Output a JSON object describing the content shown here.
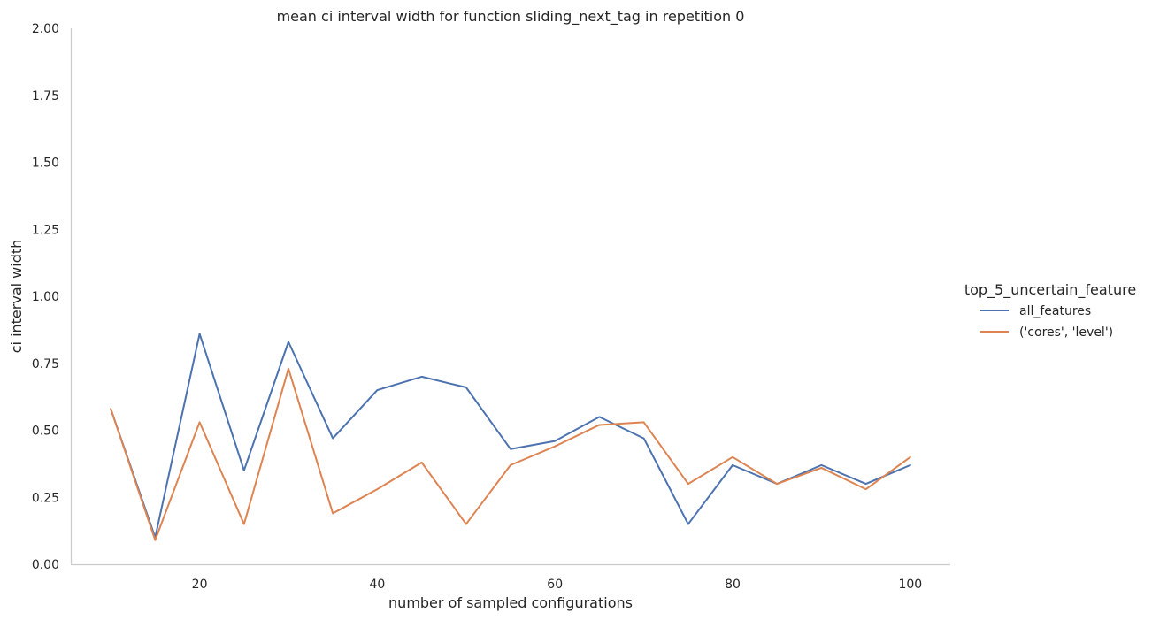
{
  "chart_data": {
    "type": "line",
    "title": "mean ci interval width for function sliding_next_tag in repetition 0",
    "xlabel": "number of sampled configurations",
    "ylabel": "ci interval width",
    "xlim": [
      5.5,
      104.5
    ],
    "ylim": [
      0,
      2
    ],
    "xticks": [
      "20",
      "40",
      "60",
      "80",
      "100"
    ],
    "yticks": [
      "0.00",
      "0.25",
      "0.50",
      "0.75",
      "1.00",
      "1.25",
      "1.50",
      "1.75",
      "2.00"
    ],
    "grid": false,
    "legend": {
      "title": "top_5_uncertain_feature",
      "placement": "right"
    },
    "x": [
      10,
      15,
      20,
      25,
      30,
      35,
      40,
      45,
      50,
      55,
      60,
      65,
      70,
      75,
      80,
      85,
      90,
      95,
      100
    ],
    "series": [
      {
        "name": "all_features",
        "color": "#4c72b0",
        "values": [
          0.58,
          0.1,
          0.86,
          0.35,
          0.83,
          0.47,
          0.65,
          0.7,
          0.66,
          0.43,
          0.46,
          0.55,
          0.47,
          0.15,
          0.37,
          0.3,
          0.37,
          0.3,
          0.37
        ]
      },
      {
        "name": "('cores', 'level')",
        "color": "#dd8452",
        "values": [
          0.58,
          0.09,
          0.53,
          0.15,
          0.73,
          0.19,
          0.28,
          0.38,
          0.15,
          0.37,
          0.44,
          0.52,
          0.53,
          0.3,
          0.4,
          0.3,
          0.36,
          0.28,
          0.4
        ]
      }
    ]
  }
}
